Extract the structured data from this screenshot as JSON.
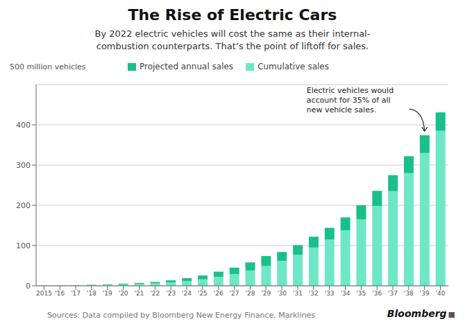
{
  "chart_data": {
    "type": "bar",
    "stacked": true,
    "title": "The Rise of Electric Cars",
    "subtitle": "By 2022 electric vehicles will cost the same as their internal-\ncombustion counterparts. That’s the point of liftoff for sales.",
    "y_label": "500 million vehicles",
    "source": "Sources: Data compiled by Bloomberg New Energy Finance, Marklines",
    "credit": "Bloomberg",
    "credit_icon": "■",
    "categories": [
      "2015",
      "'16",
      "'17",
      "'18",
      "'19",
      "'20",
      "'21",
      "'22",
      "'23",
      "'24",
      "'25",
      "'26",
      "'27",
      "'28",
      "'29",
      "'30",
      "'31",
      "'32",
      "'33",
      "'34",
      "'35",
      "'36",
      "'37",
      "'38",
      "'39",
      "'40"
    ],
    "series": [
      {
        "name": "Cumulative sales",
        "color": "#6EE7C7",
        "values": [
          0.3,
          0.6,
          1.0,
          1.5,
          2.2,
          3.2,
          4.5,
          6.0,
          8.5,
          12.0,
          16.0,
          22.0,
          29.0,
          38.0,
          49.0,
          62.0,
          77.0,
          95.0,
          115.0,
          138.0,
          165.0,
          198.0,
          235.0,
          280.0,
          330.0,
          385.0
        ]
      },
      {
        "name": "Projected annual sales",
        "color": "#1ABF8A",
        "values": [
          0.2,
          0.4,
          0.6,
          0.9,
          1.3,
          1.8,
          2.5,
          3.5,
          5.0,
          7.0,
          9.5,
          13.0,
          16.0,
          20.0,
          25.0,
          22.0,
          24.0,
          27.0,
          29.0,
          32.0,
          35.0,
          38.0,
          40.0,
          42.0,
          44.0,
          46.0
        ]
      }
    ],
    "annotation": {
      "text": "Electric vehicles would\naccount for 35% of all\nnew vehicle sales.",
      "x": "'39"
    },
    "ylim": [
      0,
      500
    ],
    "yticks": [
      0,
      100,
      200,
      300,
      400
    ],
    "grid": true,
    "legend": "top"
  }
}
